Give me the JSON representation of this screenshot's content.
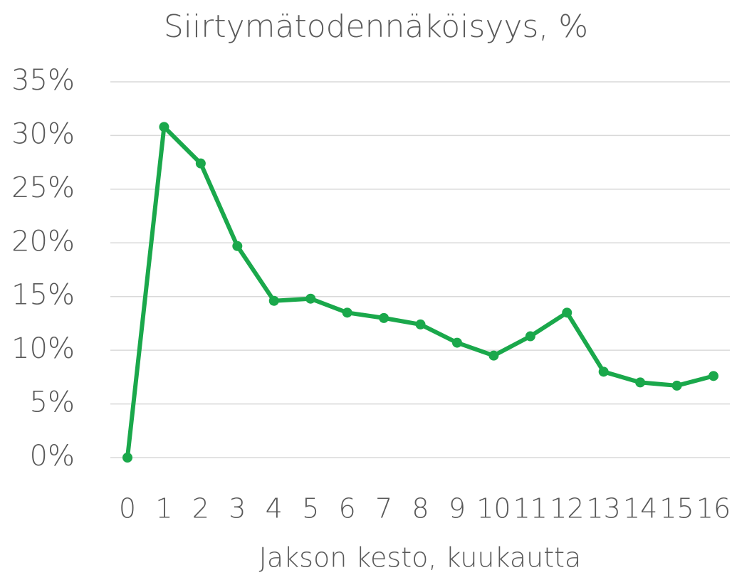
{
  "chart_data": {
    "type": "line",
    "title": "Siirtymätodennäköisyys, %",
    "x_label": "Jakson kesto, kuukautta",
    "categories": [
      "0",
      "1",
      "2",
      "3",
      "4",
      "5",
      "6",
      "7",
      "8",
      "9",
      "10",
      "11",
      "12",
      "13",
      "14",
      "15",
      "16"
    ],
    "series": [
      {
        "name": "Siirtymätodennäköisyys",
        "color": "#1aa84b",
        "values": [
          0,
          30.8,
          27.4,
          19.7,
          14.6,
          14.8,
          13.5,
          13.0,
          12.4,
          10.7,
          9.5,
          11.3,
          13.5,
          8.0,
          7.0,
          6.7,
          7.6
        ]
      }
    ],
    "ylim": [
      0,
      35
    ],
    "yticks": [
      {
        "value": 0,
        "label": "0%"
      },
      {
        "value": 5,
        "label": "5%"
      },
      {
        "value": 10,
        "label": "10%"
      },
      {
        "value": 15,
        "label": "15%"
      },
      {
        "value": 20,
        "label": "20%"
      },
      {
        "value": 25,
        "label": "25%"
      },
      {
        "value": 30,
        "label": "30%"
      },
      {
        "value": 35,
        "label": "35%"
      }
    ],
    "grid": true
  }
}
